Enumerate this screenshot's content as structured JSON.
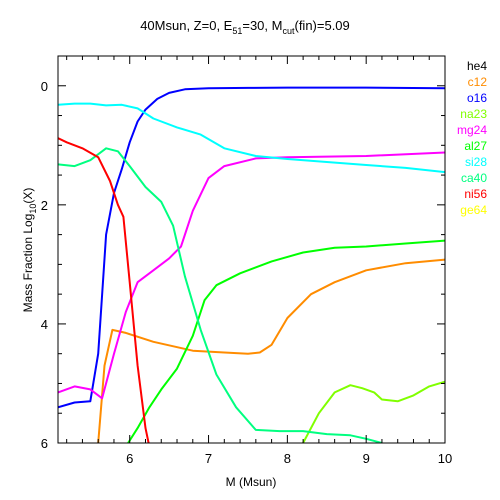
{
  "chart_data": {
    "type": "line",
    "title": "40Msun, Z=0, E51=30, Mcut(fin)=5.09",
    "title_parts": {
      "prefix": "40Msun, Z=0, E",
      "e_sub": "51",
      "mid": "=30, M",
      "m_sub": "cut",
      "suffix": "(fin)=5.09"
    },
    "xlabel": "M (Msun)",
    "ylabel": "Mass Fraction Log10(X)",
    "ylabel_parts": {
      "prefix": "Mass Fraction Log",
      "sub": "10",
      "suffix": "(X)"
    },
    "xlim": [
      5.09,
      10
    ],
    "ylim": [
      -6,
      0.5
    ],
    "xticks": [
      6,
      7,
      8,
      9,
      10
    ],
    "yticks": [
      0,
      -2,
      -4,
      -6
    ],
    "xtick_labels": [
      "6",
      "7",
      "8",
      "9",
      "10"
    ],
    "ytick_labels": [
      "0",
      "2",
      "4",
      "6"
    ],
    "series": [
      {
        "name": "he4",
        "color": "#000000",
        "x": [],
        "y": []
      },
      {
        "name": "c12",
        "color": "#ff8c00",
        "x": [
          5.6,
          5.68,
          5.78,
          5.95,
          6.3,
          6.8,
          7.2,
          7.5,
          7.65,
          7.8,
          8.0,
          8.3,
          8.6,
          9.0,
          9.5,
          10.0
        ],
        "y": [
          -6.0,
          -4.7,
          -4.1,
          -4.15,
          -4.3,
          -4.45,
          -4.48,
          -4.5,
          -4.48,
          -4.35,
          -3.9,
          -3.5,
          -3.3,
          -3.1,
          -2.98,
          -2.92
        ]
      },
      {
        "name": "o16",
        "color": "#0000ff",
        "x": [
          5.09,
          5.3,
          5.5,
          5.6,
          5.7,
          5.8,
          5.9,
          6.0,
          6.1,
          6.2,
          6.35,
          6.5,
          6.7,
          7.0,
          7.5,
          8.0,
          9.0,
          10.0
        ],
        "y": [
          -5.4,
          -5.32,
          -5.3,
          -4.5,
          -2.5,
          -1.8,
          -1.4,
          -0.95,
          -0.6,
          -0.4,
          -0.22,
          -0.12,
          -0.06,
          -0.04,
          -0.035,
          -0.03,
          -0.03,
          -0.04
        ]
      },
      {
        "name": "na23",
        "color": "#80ff00",
        "x": [
          8.2,
          8.4,
          8.6,
          8.8,
          8.95,
          9.1,
          9.2,
          9.4,
          9.6,
          9.8,
          10.0
        ],
        "y": [
          -6.0,
          -5.5,
          -5.15,
          -5.03,
          -5.08,
          -5.15,
          -5.27,
          -5.3,
          -5.2,
          -5.05,
          -4.97
        ]
      },
      {
        "name": "mg24",
        "color": "#ff00ff",
        "x": [
          5.09,
          5.3,
          5.5,
          5.65,
          5.8,
          5.95,
          6.1,
          6.3,
          6.5,
          6.65,
          6.8,
          7.0,
          7.2,
          7.6,
          8.0,
          9.0,
          10.0
        ],
        "y": [
          -5.15,
          -5.05,
          -5.1,
          -5.25,
          -4.5,
          -3.8,
          -3.3,
          -3.1,
          -2.9,
          -2.7,
          -2.1,
          -1.55,
          -1.35,
          -1.22,
          -1.2,
          -1.18,
          -1.12
        ]
      },
      {
        "name": "al27",
        "color": "#00ff00",
        "x": [
          5.98,
          6.1,
          6.25,
          6.4,
          6.6,
          6.8,
          6.95,
          7.1,
          7.4,
          7.8,
          8.2,
          8.6,
          9.0,
          9.5,
          10.0
        ],
        "y": [
          -6.0,
          -5.75,
          -5.4,
          -5.1,
          -4.75,
          -4.2,
          -3.6,
          -3.35,
          -3.15,
          -2.95,
          -2.8,
          -2.72,
          -2.7,
          -2.65,
          -2.6
        ]
      },
      {
        "name": "si28",
        "color": "#00ffff",
        "x": [
          5.09,
          5.3,
          5.5,
          5.7,
          5.9,
          6.1,
          6.3,
          6.6,
          6.9,
          7.2,
          7.6,
          8.0,
          8.5,
          9.0,
          9.5,
          10.0
        ],
        "y": [
          -0.32,
          -0.3,
          -0.3,
          -0.33,
          -0.32,
          -0.38,
          -0.55,
          -0.7,
          -0.82,
          -1.05,
          -1.18,
          -1.23,
          -1.28,
          -1.33,
          -1.38,
          -1.45
        ]
      },
      {
        "name": "ca40",
        "color": "#00ff80",
        "x": [
          5.09,
          5.3,
          5.5,
          5.7,
          5.85,
          6.0,
          6.2,
          6.4,
          6.55,
          6.7,
          6.9,
          7.1,
          7.35,
          7.6,
          7.9,
          8.2,
          8.5,
          8.8,
          9.0,
          9.2
        ],
        "y": [
          -1.32,
          -1.35,
          -1.25,
          -1.05,
          -1.1,
          -1.35,
          -1.7,
          -1.95,
          -2.35,
          -3.2,
          -4.1,
          -4.85,
          -5.4,
          -5.78,
          -5.8,
          -5.8,
          -5.85,
          -5.87,
          -5.93,
          -6.0
        ]
      },
      {
        "name": "ni56",
        "color": "#ff0000",
        "x": [
          5.09,
          5.2,
          5.4,
          5.6,
          5.75,
          5.85,
          5.92,
          6.0,
          6.1,
          6.2,
          6.24
        ],
        "y": [
          -0.88,
          -0.95,
          -1.05,
          -1.2,
          -1.6,
          -2.0,
          -2.2,
          -3.3,
          -4.7,
          -5.75,
          -6.0
        ]
      },
      {
        "name": "ge64",
        "color": "#ffff00",
        "x": [],
        "y": []
      }
    ],
    "legend": {
      "placement": "right-outside"
    },
    "grid": false
  }
}
